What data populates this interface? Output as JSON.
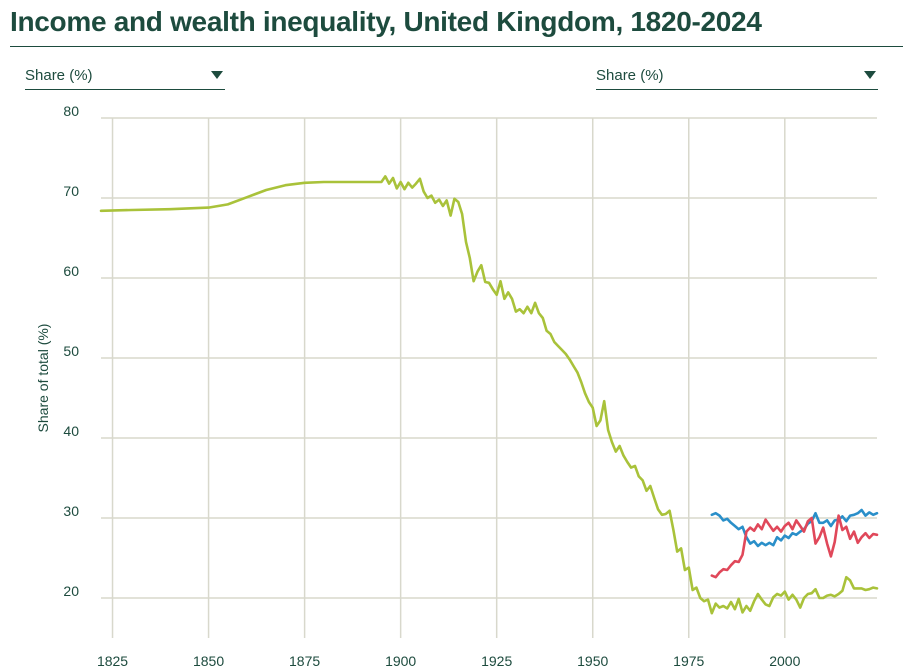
{
  "title": "Income and wealth inequality, United Kingdom, 1820-2024",
  "controls": {
    "left_select": "Share (%)",
    "right_select": "Share (%)"
  },
  "colors": {
    "series_green": "#a9c23a",
    "series_blue": "#2a8fc9",
    "series_red": "#e0485a",
    "grid": "#d8d8cc",
    "text": "#1d4b3e"
  },
  "chart_data": {
    "type": "line",
    "title": "Income and wealth inequality, United Kingdom, 1820-2024",
    "xlabel": "",
    "ylabel": "Share of total (%)",
    "xlim": [
      1822,
      2024
    ],
    "ylim": [
      15,
      80
    ],
    "x_ticks": [
      1825,
      1850,
      1875,
      1900,
      1925,
      1950,
      1975,
      2000
    ],
    "y_ticks": [
      20,
      30,
      40,
      50,
      60,
      70,
      80
    ],
    "grid": true,
    "series": [
      {
        "name": "green",
        "color": "#a9c23a",
        "points": [
          [
            1822,
            68.4
          ],
          [
            1830,
            68.5
          ],
          [
            1840,
            68.6
          ],
          [
            1850,
            68.8
          ],
          [
            1855,
            69.2
          ],
          [
            1860,
            70.1
          ],
          [
            1865,
            71.0
          ],
          [
            1870,
            71.6
          ],
          [
            1875,
            71.9
          ],
          [
            1880,
            72.0
          ],
          [
            1890,
            72.0
          ],
          [
            1895,
            72.0
          ],
          [
            1896,
            72.7
          ],
          [
            1897,
            71.8
          ],
          [
            1898,
            72.5
          ],
          [
            1899,
            71.2
          ],
          [
            1900,
            72.0
          ],
          [
            1901,
            71.1
          ],
          [
            1902,
            71.9
          ],
          [
            1903,
            71.3
          ],
          [
            1904,
            71.8
          ],
          [
            1905,
            72.4
          ],
          [
            1906,
            70.8
          ],
          [
            1907,
            70.0
          ],
          [
            1908,
            70.3
          ],
          [
            1909,
            69.4
          ],
          [
            1910,
            69.8
          ],
          [
            1911,
            69.0
          ],
          [
            1912,
            69.7
          ],
          [
            1913,
            67.8
          ],
          [
            1914,
            69.9
          ],
          [
            1915,
            69.5
          ],
          [
            1916,
            68.0
          ],
          [
            1917,
            64.5
          ],
          [
            1918,
            62.5
          ],
          [
            1919,
            59.6
          ],
          [
            1920,
            60.8
          ],
          [
            1921,
            61.6
          ],
          [
            1922,
            59.5
          ],
          [
            1923,
            59.4
          ],
          [
            1924,
            58.6
          ],
          [
            1925,
            57.9
          ],
          [
            1926,
            59.6
          ],
          [
            1927,
            57.4
          ],
          [
            1928,
            58.2
          ],
          [
            1929,
            57.4
          ],
          [
            1930,
            55.8
          ],
          [
            1931,
            56.1
          ],
          [
            1932,
            55.6
          ],
          [
            1933,
            56.4
          ],
          [
            1934,
            55.6
          ],
          [
            1935,
            56.9
          ],
          [
            1936,
            55.6
          ],
          [
            1937,
            55.0
          ],
          [
            1938,
            53.4
          ],
          [
            1939,
            53.0
          ],
          [
            1940,
            52.0
          ],
          [
            1941,
            51.5
          ],
          [
            1942,
            51.0
          ],
          [
            1943,
            50.5
          ],
          [
            1944,
            49.8
          ],
          [
            1945,
            49.0
          ],
          [
            1946,
            48.2
          ],
          [
            1947,
            47.0
          ],
          [
            1948,
            45.6
          ],
          [
            1949,
            44.5
          ],
          [
            1950,
            43.8
          ],
          [
            1951,
            41.5
          ],
          [
            1952,
            42.2
          ],
          [
            1953,
            44.6
          ],
          [
            1954,
            41.0
          ],
          [
            1955,
            39.5
          ],
          [
            1956,
            38.3
          ],
          [
            1957,
            39.0
          ],
          [
            1958,
            37.8
          ],
          [
            1959,
            37.0
          ],
          [
            1960,
            36.3
          ],
          [
            1961,
            36.5
          ],
          [
            1962,
            35.2
          ],
          [
            1963,
            34.7
          ],
          [
            1964,
            33.4
          ],
          [
            1965,
            34.0
          ],
          [
            1966,
            32.5
          ],
          [
            1967,
            31.1
          ],
          [
            1968,
            30.4
          ],
          [
            1969,
            30.5
          ],
          [
            1970,
            30.9
          ],
          [
            1971,
            28.5
          ],
          [
            1972,
            25.8
          ],
          [
            1973,
            26.2
          ],
          [
            1974,
            23.5
          ],
          [
            1975,
            23.8
          ],
          [
            1976,
            21.0
          ],
          [
            1977,
            21.3
          ],
          [
            1978,
            20.0
          ],
          [
            1979,
            19.6
          ],
          [
            1980,
            19.8
          ],
          [
            1981,
            18.1
          ],
          [
            1982,
            19.3
          ],
          [
            1983,
            18.8
          ],
          [
            1984,
            19.0
          ],
          [
            1985,
            18.7
          ],
          [
            1986,
            19.5
          ],
          [
            1987,
            18.6
          ],
          [
            1988,
            19.9
          ],
          [
            1989,
            18.2
          ],
          [
            1990,
            19.0
          ],
          [
            1991,
            18.4
          ],
          [
            1992,
            19.6
          ],
          [
            1993,
            20.5
          ],
          [
            1994,
            19.8
          ],
          [
            1995,
            19.2
          ],
          [
            1996,
            19.0
          ],
          [
            1997,
            20.1
          ],
          [
            1998,
            20.5
          ],
          [
            1999,
            20.3
          ],
          [
            2000,
            20.8
          ],
          [
            2001,
            19.8
          ],
          [
            2002,
            20.4
          ],
          [
            2003,
            19.8
          ],
          [
            2004,
            18.8
          ],
          [
            2005,
            20.0
          ],
          [
            2006,
            20.5
          ],
          [
            2007,
            20.6
          ],
          [
            2008,
            21.1
          ],
          [
            2009,
            20.0
          ],
          [
            2010,
            20.0
          ],
          [
            2011,
            20.3
          ],
          [
            2012,
            20.4
          ],
          [
            2013,
            20.2
          ],
          [
            2014,
            20.5
          ],
          [
            2015,
            20.9
          ],
          [
            2016,
            22.6
          ],
          [
            2017,
            22.2
          ],
          [
            2018,
            21.2
          ],
          [
            2019,
            21.2
          ],
          [
            2020,
            21.2
          ],
          [
            2021,
            21.0
          ],
          [
            2022,
            21.1
          ],
          [
            2023,
            21.3
          ],
          [
            2024,
            21.2
          ]
        ]
      },
      {
        "name": "blue",
        "color": "#2a8fc9",
        "points": [
          [
            1981,
            30.4
          ],
          [
            1982,
            30.6
          ],
          [
            1983,
            30.3
          ],
          [
            1984,
            29.7
          ],
          [
            1985,
            29.9
          ],
          [
            1986,
            29.4
          ],
          [
            1987,
            29.0
          ],
          [
            1988,
            28.6
          ],
          [
            1989,
            28.9
          ],
          [
            1990,
            27.6
          ],
          [
            1991,
            26.8
          ],
          [
            1992,
            27.1
          ],
          [
            1993,
            26.5
          ],
          [
            1994,
            26.9
          ],
          [
            1995,
            26.6
          ],
          [
            1996,
            26.9
          ],
          [
            1997,
            26.6
          ],
          [
            1998,
            27.6
          ],
          [
            1999,
            27.2
          ],
          [
            2000,
            27.8
          ],
          [
            2001,
            27.5
          ],
          [
            2002,
            28.1
          ],
          [
            2003,
            27.9
          ],
          [
            2004,
            28.3
          ],
          [
            2005,
            28.6
          ],
          [
            2006,
            29.3
          ],
          [
            2007,
            29.6
          ],
          [
            2008,
            30.6
          ],
          [
            2009,
            29.4
          ],
          [
            2010,
            29.4
          ],
          [
            2011,
            29.7
          ],
          [
            2012,
            29.0
          ],
          [
            2013,
            29.7
          ],
          [
            2014,
            29.8
          ],
          [
            2015,
            30.2
          ],
          [
            2016,
            29.6
          ],
          [
            2017,
            30.3
          ],
          [
            2018,
            30.4
          ],
          [
            2019,
            30.6
          ],
          [
            2020,
            31.0
          ],
          [
            2021,
            30.3
          ],
          [
            2022,
            30.7
          ],
          [
            2023,
            30.4
          ],
          [
            2024,
            30.6
          ]
        ]
      },
      {
        "name": "red",
        "color": "#e0485a",
        "points": [
          [
            1981,
            22.8
          ],
          [
            1982,
            22.6
          ],
          [
            1983,
            23.2
          ],
          [
            1984,
            23.6
          ],
          [
            1985,
            23.5
          ],
          [
            1986,
            24.1
          ],
          [
            1987,
            24.6
          ],
          [
            1988,
            24.5
          ],
          [
            1989,
            25.4
          ],
          [
            1990,
            28.3
          ],
          [
            1991,
            28.8
          ],
          [
            1992,
            28.4
          ],
          [
            1993,
            29.2
          ],
          [
            1994,
            28.6
          ],
          [
            1995,
            29.8
          ],
          [
            1996,
            29.1
          ],
          [
            1997,
            28.4
          ],
          [
            1998,
            28.9
          ],
          [
            1999,
            28.3
          ],
          [
            2000,
            29.0
          ],
          [
            2001,
            29.4
          ],
          [
            2002,
            28.6
          ],
          [
            2003,
            29.7
          ],
          [
            2004,
            29.0
          ],
          [
            2005,
            28.3
          ],
          [
            2006,
            29.6
          ],
          [
            2007,
            30.0
          ],
          [
            2008,
            26.8
          ],
          [
            2009,
            27.6
          ],
          [
            2010,
            28.8
          ],
          [
            2011,
            26.8
          ],
          [
            2012,
            25.2
          ],
          [
            2013,
            27.0
          ],
          [
            2014,
            30.3
          ],
          [
            2015,
            28.5
          ],
          [
            2016,
            28.9
          ],
          [
            2017,
            27.4
          ],
          [
            2018,
            28.3
          ],
          [
            2019,
            26.9
          ],
          [
            2020,
            27.6
          ],
          [
            2021,
            28.1
          ],
          [
            2022,
            27.5
          ],
          [
            2023,
            28.0
          ],
          [
            2024,
            27.9
          ]
        ]
      }
    ]
  }
}
